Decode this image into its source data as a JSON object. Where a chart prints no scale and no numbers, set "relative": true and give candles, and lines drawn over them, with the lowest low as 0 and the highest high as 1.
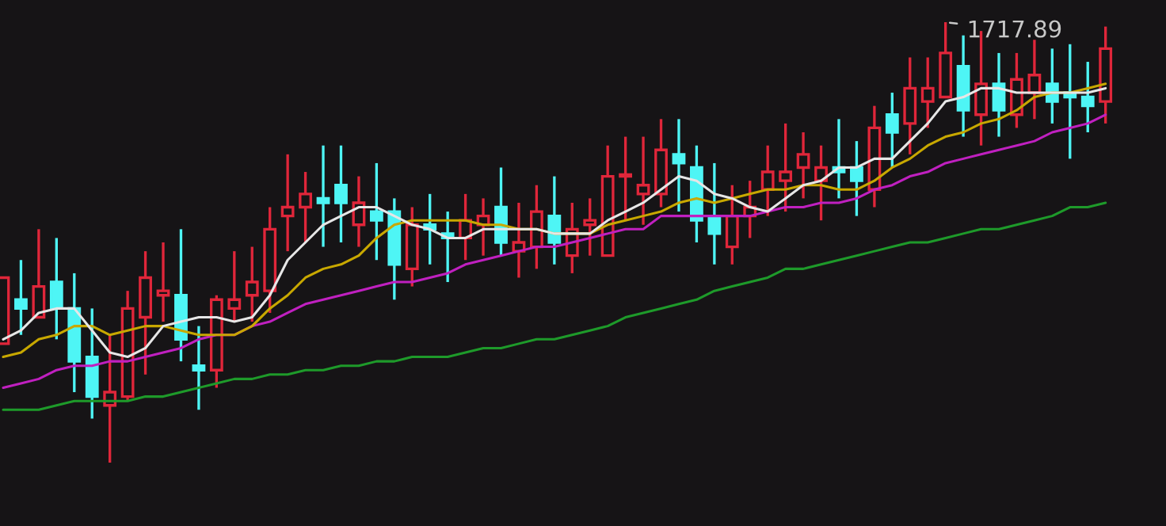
{
  "chart_data": {
    "type": "candlestick",
    "relative": true,
    "categories": [
      null,
      null,
      null,
      null,
      null,
      null,
      null,
      null,
      null,
      null,
      null,
      null,
      null,
      null,
      null,
      null,
      null,
      null,
      null,
      null,
      null,
      null,
      null,
      null,
      null,
      null,
      null,
      null,
      null,
      null,
      null,
      null,
      null,
      null,
      null,
      null,
      null,
      null,
      null,
      null,
      null,
      null,
      null,
      null,
      null,
      null,
      null,
      null,
      null,
      null,
      null,
      null,
      null,
      null,
      null,
      null,
      null,
      null,
      null,
      null,
      null,
      null,
      null
    ],
    "ohlc": [
      [
        0.27,
        0.42,
        0.27,
        0.42
      ],
      [
        0.37,
        0.46,
        0.29,
        0.35
      ],
      [
        0.33,
        0.53,
        0.33,
        0.4
      ],
      [
        0.41,
        0.51,
        0.28,
        0.35
      ],
      [
        0.35,
        0.43,
        0.16,
        0.23
      ],
      [
        0.24,
        0.35,
        0.1,
        0.15
      ],
      [
        0.13,
        0.29,
        0,
        0.16
      ],
      [
        0.15,
        0.39,
        0.14,
        0.35
      ],
      [
        0.33,
        0.48,
        0.2,
        0.42
      ],
      [
        0.38,
        0.5,
        0.32,
        0.39
      ],
      [
        0.38,
        0.53,
        0.23,
        0.28
      ],
      [
        0.22,
        0.31,
        0.12,
        0.21
      ],
      [
        0.21,
        0.38,
        0.17,
        0.37
      ],
      [
        0.35,
        0.48,
        0.32,
        0.37
      ],
      [
        0.38,
        0.49,
        0.32,
        0.41
      ],
      [
        0.39,
        0.58,
        0.34,
        0.53
      ],
      [
        0.56,
        0.7,
        0.48,
        0.58
      ],
      [
        0.58,
        0.66,
        0.5,
        0.61
      ],
      [
        0.6,
        0.72,
        0.49,
        0.59
      ],
      [
        0.63,
        0.72,
        0.5,
        0.59
      ],
      [
        0.54,
        0.65,
        0.49,
        0.59
      ],
      [
        0.57,
        0.68,
        0.46,
        0.55
      ],
      [
        0.57,
        0.6,
        0.37,
        0.45
      ],
      [
        0.44,
        0.58,
        0.4,
        0.54
      ],
      [
        0.54,
        0.61,
        0.45,
        0.53
      ],
      [
        0.52,
        0.57,
        0.41,
        0.51
      ],
      [
        0.51,
        0.61,
        0.46,
        0.55
      ],
      [
        0.54,
        0.6,
        0.47,
        0.56
      ],
      [
        0.58,
        0.67,
        0.47,
        0.5
      ],
      [
        0.48,
        0.59,
        0.42,
        0.5
      ],
      [
        0.49,
        0.63,
        0.44,
        0.57
      ],
      [
        0.56,
        0.65,
        0.45,
        0.5
      ],
      [
        0.47,
        0.59,
        0.43,
        0.53
      ],
      [
        0.54,
        0.6,
        0.47,
        0.55
      ],
      [
        0.47,
        0.72,
        0.47,
        0.65
      ],
      [
        0.65,
        0.74,
        0.55,
        0.65
      ],
      [
        0.61,
        0.74,
        0.54,
        0.63
      ],
      [
        0.61,
        0.78,
        0.58,
        0.71
      ],
      [
        0.7,
        0.78,
        0.57,
        0.68
      ],
      [
        0.67,
        0.72,
        0.5,
        0.55
      ],
      [
        0.56,
        0.68,
        0.45,
        0.52
      ],
      [
        0.49,
        0.63,
        0.45,
        0.56
      ],
      [
        0.56,
        0.64,
        0.51,
        0.58
      ],
      [
        0.62,
        0.72,
        0.56,
        0.66
      ],
      [
        0.64,
        0.77,
        0.57,
        0.66
      ],
      [
        0.67,
        0.75,
        0.6,
        0.7
      ],
      [
        0.64,
        0.72,
        0.55,
        0.67
      ],
      [
        0.67,
        0.78,
        0.6,
        0.66
      ],
      [
        0.67,
        0.73,
        0.56,
        0.64
      ],
      [
        0.62,
        0.81,
        0.58,
        0.76
      ],
      [
        0.79,
        0.84,
        0.67,
        0.75
      ],
      [
        0.77,
        0.92,
        0.7,
        0.85
      ],
      [
        0.82,
        0.92,
        0.76,
        0.85
      ],
      [
        0.83,
        1,
        0.83,
        0.93
      ],
      [
        0.9,
        0.97,
        0.74,
        0.8
      ],
      [
        0.79,
        0.98,
        0.72,
        0.86
      ],
      [
        0.86,
        0.93,
        0.74,
        0.8
      ],
      [
        0.79,
        0.93,
        0.76,
        0.87
      ],
      [
        0.84,
        0.96,
        0.78,
        0.88
      ],
      [
        0.86,
        0.94,
        0.77,
        0.82
      ],
      [
        0.84,
        0.95,
        0.69,
        0.83
      ],
      [
        0.83,
        0.91,
        0.75,
        0.81
      ],
      [
        0.82,
        0.99,
        0.77,
        0.94
      ]
    ],
    "colors": [
      "#e0263a",
      "#4ef5f5",
      "#e0263a",
      "#4ef5f5",
      "#4ef5f5",
      "#4ef5f5",
      "#e0263a",
      "#e0263a",
      "#e0263a",
      "#e0263a",
      "#4ef5f5",
      "#4ef5f5",
      "#e0263a",
      "#e0263a",
      "#e0263a",
      "#e0263a",
      "#e0263a",
      "#e0263a",
      "#4ef5f5",
      "#4ef5f5",
      "#e0263a",
      "#4ef5f5",
      "#4ef5f5",
      "#e0263a",
      "#4ef5f5",
      "#4ef5f5",
      "#e0263a",
      "#e0263a",
      "#4ef5f5",
      "#e0263a",
      "#e0263a",
      "#4ef5f5",
      "#e0263a",
      "#e0263a",
      "#e0263a",
      "#e0263a",
      "#e0263a",
      "#e0263a",
      "#4ef5f5",
      "#4ef5f5",
      "#4ef5f5",
      "#e0263a",
      "#e0263a",
      "#e0263a",
      "#e0263a",
      "#e0263a",
      "#e0263a",
      "#4ef5f5",
      "#4ef5f5",
      "#e0263a",
      "#4ef5f5",
      "#e0263a",
      "#e0263a",
      "#e0263a",
      "#4ef5f5",
      "#e0263a",
      "#4ef5f5",
      "#e0263a",
      "#e0263a",
      "#4ef5f5",
      "#4ef5f5",
      "#4ef5f5",
      "#e0263a"
    ],
    "series": [
      {
        "type": "line",
        "color": "#1e9a2a",
        "values": [
          0.12,
          0.12,
          0.12,
          0.13,
          0.14,
          0.14,
          0.14,
          0.14,
          0.15,
          0.15,
          0.16,
          0.17,
          0.18,
          0.19,
          0.19,
          0.2,
          0.2,
          0.21,
          0.21,
          0.22,
          0.22,
          0.23,
          0.23,
          0.24,
          0.24,
          0.24,
          0.25,
          0.26,
          0.26,
          0.27,
          0.28,
          0.28,
          0.29,
          0.3,
          0.31,
          0.33,
          0.34,
          0.35,
          0.36,
          0.37,
          0.39,
          0.4,
          0.41,
          0.42,
          0.44,
          0.44,
          0.45,
          0.46,
          0.47,
          0.48,
          0.49,
          0.5,
          0.5,
          0.51,
          0.52,
          0.53,
          0.53,
          0.54,
          0.55,
          0.56,
          0.58,
          0.58,
          0.59
        ]
      },
      {
        "type": "line",
        "color": "#c020c0",
        "values": [
          0.17,
          0.18,
          0.19,
          0.21,
          0.22,
          0.22,
          0.23,
          0.23,
          0.24,
          0.25,
          0.26,
          0.28,
          0.29,
          0.29,
          0.31,
          0.32,
          0.34,
          0.36,
          0.37,
          0.38,
          0.39,
          0.4,
          0.41,
          0.41,
          0.42,
          0.43,
          0.45,
          0.46,
          0.47,
          0.48,
          0.49,
          0.49,
          0.5,
          0.51,
          0.52,
          0.53,
          0.53,
          0.56,
          0.56,
          0.56,
          0.56,
          0.56,
          0.56,
          0.57,
          0.58,
          0.58,
          0.59,
          0.59,
          0.6,
          0.62,
          0.63,
          0.65,
          0.66,
          0.68,
          0.69,
          0.7,
          0.71,
          0.72,
          0.73,
          0.75,
          0.76,
          0.77,
          0.79
        ]
      },
      {
        "type": "line",
        "color": "#c8a800",
        "values": [
          0.24,
          0.25,
          0.28,
          0.29,
          0.31,
          0.31,
          0.29,
          0.3,
          0.31,
          0.31,
          0.3,
          0.29,
          0.29,
          0.29,
          0.31,
          0.35,
          0.38,
          0.42,
          0.44,
          0.45,
          0.47,
          0.51,
          0.54,
          0.55,
          0.55,
          0.55,
          0.55,
          0.54,
          0.54,
          0.53,
          0.53,
          0.52,
          0.52,
          0.52,
          0.54,
          0.55,
          0.56,
          0.57,
          0.59,
          0.6,
          0.59,
          0.6,
          0.61,
          0.62,
          0.62,
          0.63,
          0.63,
          0.62,
          0.62,
          0.64,
          0.67,
          0.69,
          0.72,
          0.74,
          0.75,
          0.77,
          0.78,
          0.8,
          0.83,
          0.84,
          0.84,
          0.85,
          0.86
        ]
      },
      {
        "type": "line",
        "color": "#e6e6e6",
        "values": [
          0.28,
          0.3,
          0.34,
          0.35,
          0.35,
          0.3,
          0.25,
          0.24,
          0.26,
          0.31,
          0.32,
          0.33,
          0.33,
          0.32,
          0.33,
          0.38,
          0.46,
          0.5,
          0.54,
          0.56,
          0.58,
          0.58,
          0.56,
          0.54,
          0.53,
          0.51,
          0.51,
          0.53,
          0.53,
          0.53,
          0.53,
          0.52,
          0.52,
          0.52,
          0.55,
          0.57,
          0.59,
          0.62,
          0.65,
          0.64,
          0.61,
          0.6,
          0.58,
          0.57,
          0.6,
          0.63,
          0.64,
          0.67,
          0.67,
          0.69,
          0.69,
          0.73,
          0.77,
          0.82,
          0.83,
          0.85,
          0.85,
          0.84,
          0.84,
          0.84,
          0.84,
          0.84,
          0.85
        ]
      }
    ],
    "annotations": [
      "1717.89"
    ]
  }
}
